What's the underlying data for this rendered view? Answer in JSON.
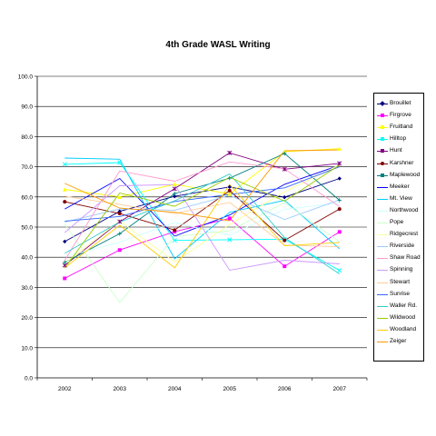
{
  "chart_data": {
    "type": "line",
    "title": "4th Grade WASL Writing",
    "xlabel": "",
    "ylabel": "",
    "x": [
      "2002",
      "2003",
      "2004",
      "2005",
      "2006",
      "2007"
    ],
    "ylim": [
      0,
      100
    ],
    "yticks": [
      "0.0",
      "10.0",
      "20.0",
      "30.0",
      "40.0",
      "50.0",
      "60.0",
      "70.0",
      "80.0",
      "90.0",
      "100.0"
    ],
    "grid": true,
    "legend_position": "right",
    "series": [
      {
        "name": "Brouillet",
        "color": "#000080",
        "marker": "diamond",
        "values": [
          45.2,
          55.2,
          60.2,
          63.3,
          59.9,
          66.1
        ]
      },
      {
        "name": "Firgrove",
        "color": "#ff00ff",
        "marker": "square",
        "values": [
          33.0,
          42.4,
          48.5,
          52.9,
          37.0,
          48.4
        ]
      },
      {
        "name": "Fruitland",
        "color": "#ffff00",
        "marker": "triangle",
        "values": [
          62.5,
          60.0,
          64.2,
          61.0,
          75.0,
          76.0
        ]
      },
      {
        "name": "Hilltop",
        "color": "#00ffff",
        "marker": "x",
        "values": [
          70.8,
          71.4,
          45.6,
          45.8,
          46.0,
          35.6
        ]
      },
      {
        "name": "Hunt",
        "color": "#800080",
        "marker": "star",
        "values": [
          37.3,
          51.8,
          62.7,
          74.6,
          69.2,
          71.1
        ]
      },
      {
        "name": "Karshner",
        "color": "#800000",
        "marker": "circle",
        "values": [
          58.4,
          54.5,
          49.0,
          62.1,
          45.6,
          56.0
        ]
      },
      {
        "name": "Maplewood",
        "color": "#008080",
        "marker": "plus",
        "values": [
          38.3,
          47.8,
          61.1,
          66.2,
          74.4,
          58.9
        ]
      },
      {
        "name": "Meeker",
        "color": "#0000ff",
        "marker": "none",
        "values": [
          56.0,
          66.1,
          47.0,
          54.0,
          64.2,
          70.5
        ]
      },
      {
        "name": "Mt. View",
        "color": "#00ccff",
        "marker": "none",
        "values": [
          72.9,
          72.5,
          39.5,
          54.9,
          58.9,
          42.8
        ]
      },
      {
        "name": "Northwood",
        "color": "#ccffff",
        "marker": "none",
        "values": [
          40.2,
          45.0,
          51.5,
          47.3,
          55.9,
          58.0
        ]
      },
      {
        "name": "Pope",
        "color": "#ccffcc",
        "marker": "none",
        "values": [
          51.0,
          25.0,
          46.8,
          48.8,
          58.1,
          45.1
        ]
      },
      {
        "name": "Ridgecrest",
        "color": "#ffff99",
        "marker": "none",
        "values": [
          38.0,
          52.0,
          38.5,
          50.8,
          61.7,
          70.7
        ]
      },
      {
        "name": "Riverside",
        "color": "#99ccff",
        "marker": "none",
        "values": [
          51.7,
          56.0,
          55.6,
          60.5,
          52.5,
          59.0
        ]
      },
      {
        "name": "Shaw Road",
        "color": "#ff99cc",
        "marker": "none",
        "values": [
          39.0,
          68.6,
          65.2,
          71.6,
          69.3,
          56.8
        ]
      },
      {
        "name": "Spinning",
        "color": "#cc99ff",
        "marker": "none",
        "values": [
          48.2,
          63.7,
          64.1,
          35.7,
          39.0,
          37.8
        ]
      },
      {
        "name": "Stewart",
        "color": "#ffcc99",
        "marker": "none",
        "values": [
          60.2,
          57.5,
          54.5,
          58.2,
          44.0,
          43.5
        ]
      },
      {
        "name": "Sunrise",
        "color": "#3366ff",
        "marker": "none",
        "values": [
          52.0,
          53.5,
          58.5,
          60.8,
          63.0,
          70.0
        ]
      },
      {
        "name": "Waller Rd.",
        "color": "#33cccc",
        "marker": "none",
        "values": [
          41.3,
          51.7,
          58.7,
          67.6,
          46.5,
          34.5
        ]
      },
      {
        "name": "Wildwood",
        "color": "#99cc00",
        "marker": "none",
        "values": [
          36.4,
          61.3,
          56.9,
          66.5,
          58.6,
          70.6
        ]
      },
      {
        "name": "Woodland",
        "color": "#ffcc00",
        "marker": "none",
        "values": [
          36.5,
          50.6,
          36.5,
          64.1,
          43.8,
          44.9
        ]
      },
      {
        "name": "Zeiger",
        "color": "#ff9900",
        "marker": "none",
        "values": [
          64.5,
          56.3,
          54.9,
          52.1,
          75.3,
          75.6
        ]
      }
    ]
  }
}
